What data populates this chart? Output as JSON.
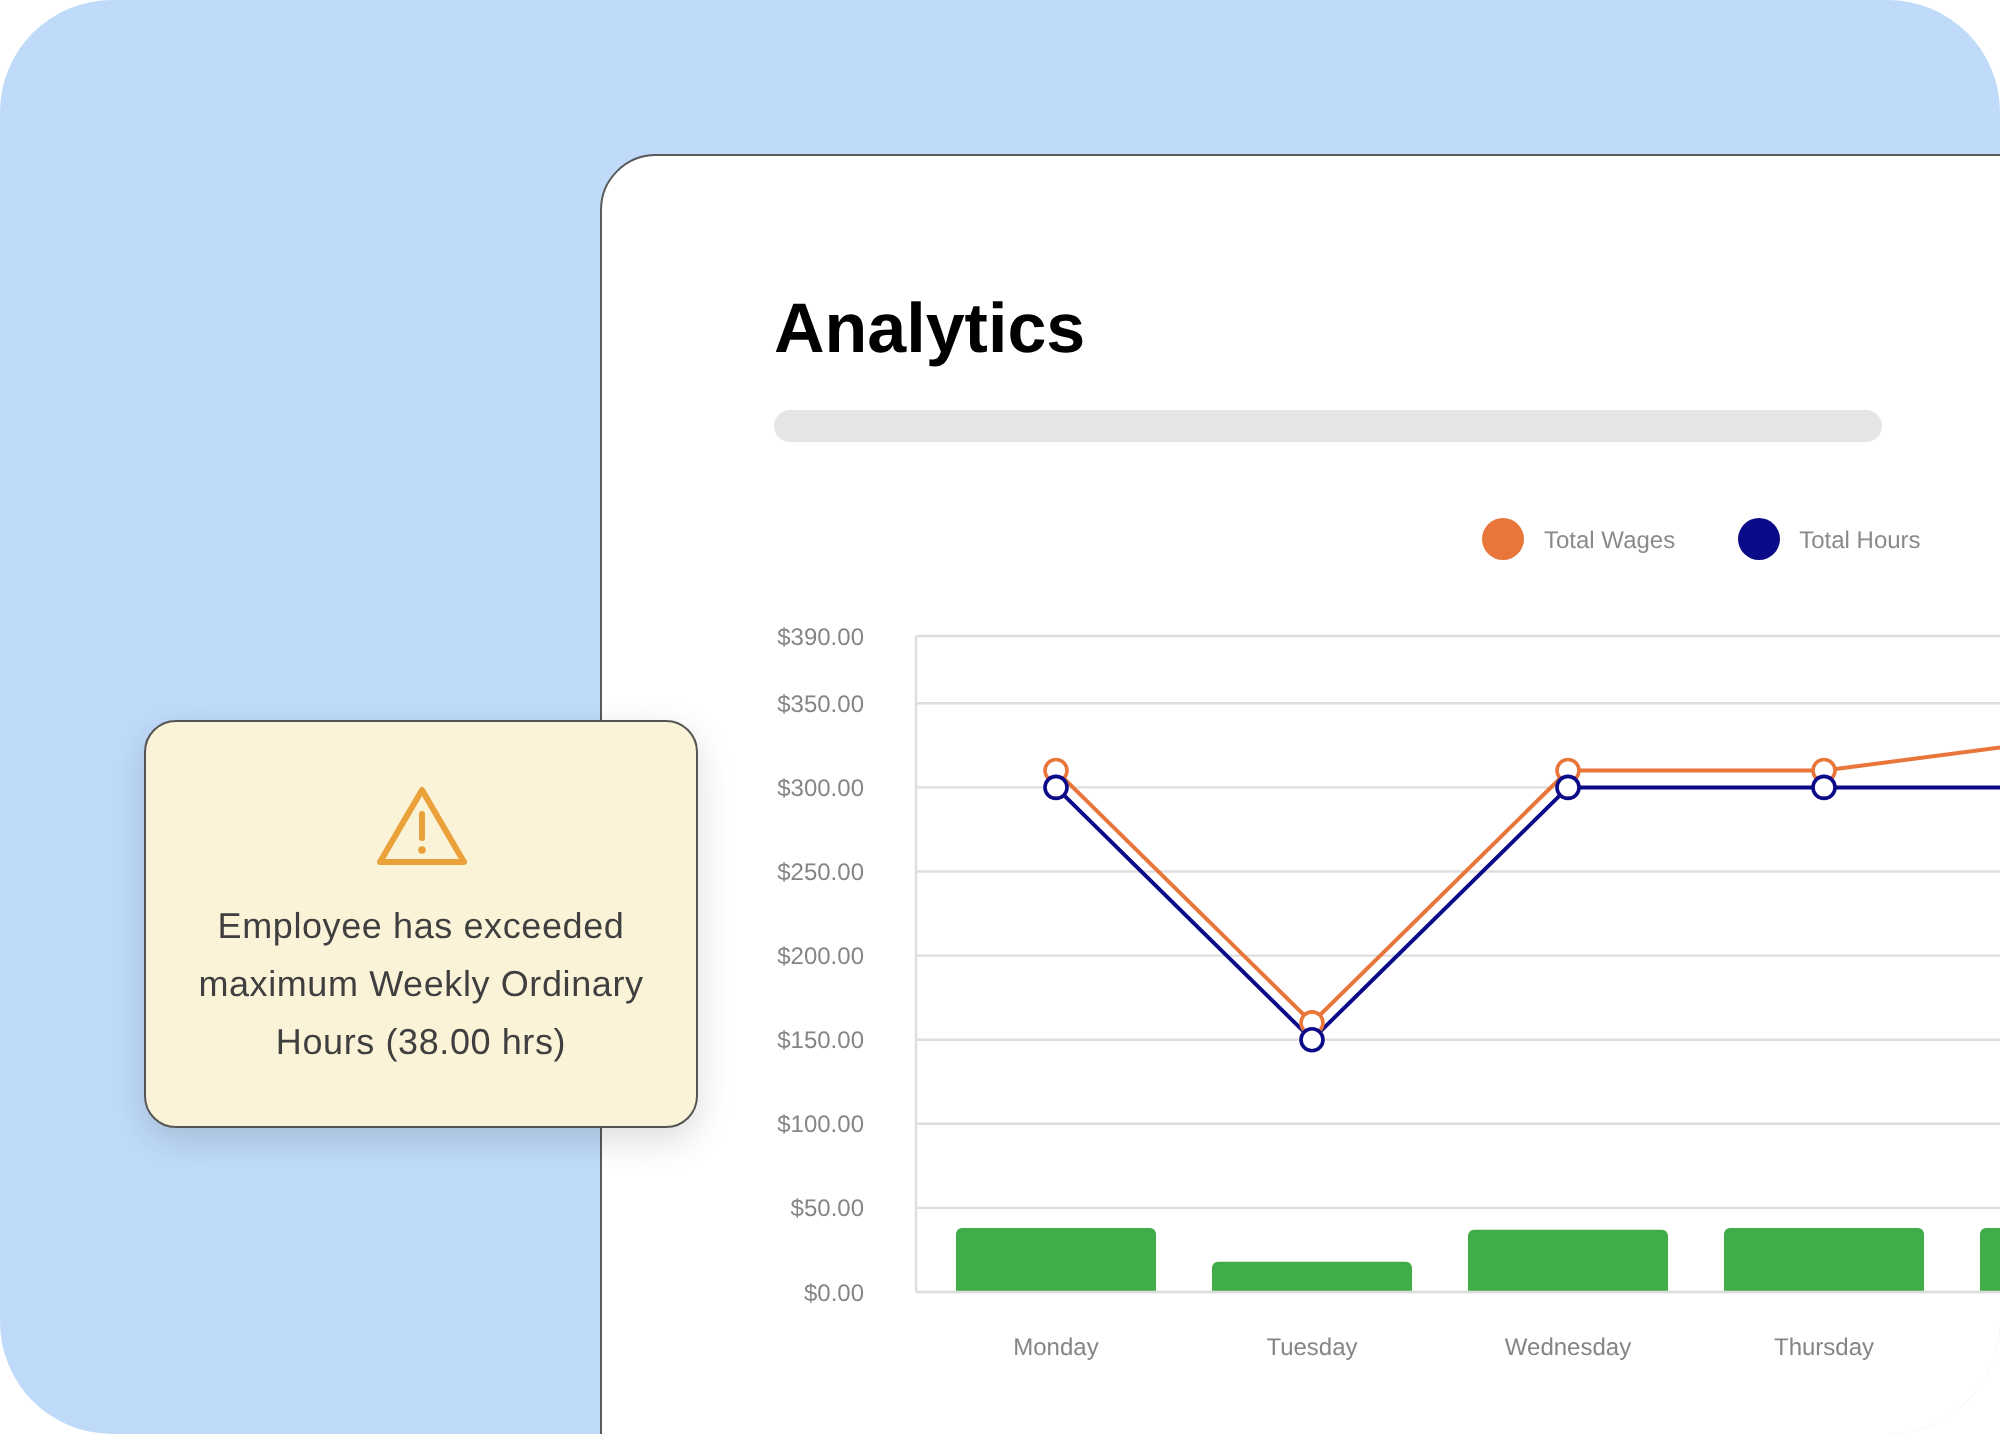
{
  "chart_data": {
    "type": "line",
    "title": "Analytics",
    "categories": [
      "Monday",
      "Tuesday",
      "Wednesday",
      "Thursday",
      null
    ],
    "series": [
      {
        "type": "bar",
        "color": "#41ad49",
        "values": [
          38,
          18,
          37,
          38,
          38
        ]
      },
      {
        "name": "Total Wages",
        "color": "#e8753a",
        "values": [
          310,
          160,
          310,
          310,
          330
        ]
      },
      {
        "name": "Total Hours",
        "color": "#0b0b8a",
        "values": [
          300,
          150,
          300,
          300,
          300
        ]
      }
    ],
    "ylim": [
      0,
      390
    ],
    "yticks": [
      {
        "value": 0,
        "label": "$0.00"
      },
      {
        "value": 50,
        "label": "$50.00"
      },
      {
        "value": 100,
        "label": "$100.00"
      },
      {
        "value": 150,
        "label": "$150.00"
      },
      {
        "value": 200,
        "label": "$200.00"
      },
      {
        "value": 250,
        "label": "$250.00"
      },
      {
        "value": 300,
        "label": "$300.00"
      },
      {
        "value": 350,
        "label": "$350.00"
      },
      {
        "value": 390,
        "label": "$390.00"
      }
    ],
    "grid": "y",
    "legend": "top right",
    "marker": "circle",
    "line_style": "solid",
    "annotations": [
      "Employee has exceeded maximum Weekly Ordinary Hours (38.00 hrs)"
    ]
  }
}
